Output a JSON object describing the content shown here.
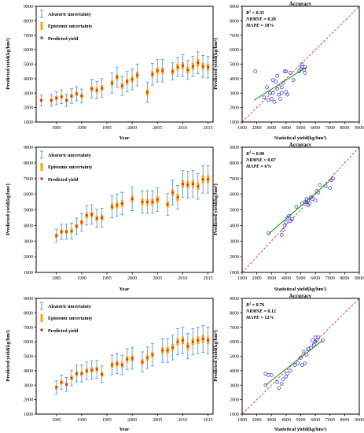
{
  "colors": {
    "aleatoric": "#5b9bd5",
    "epistemic": "#ffa500",
    "predicted": "#e8291c",
    "scatter": "#2a2ae0",
    "fit": "#1a9a1a",
    "one_to_one": "#e02020",
    "axis": "#000000"
  },
  "chart_data": [
    {
      "id": "ts1",
      "type": "line",
      "xlabel": "Year",
      "ylabel": "Predicted yield(kg/hm²)",
      "xlim": [
        1981,
        2016
      ],
      "ylim": [
        1000,
        9000
      ],
      "xticks": [
        1985,
        1990,
        1995,
        2000,
        2005,
        2010,
        2015
      ],
      "yticks": [
        1000,
        2000,
        3000,
        4000,
        5000,
        6000,
        7000,
        8000,
        9000
      ],
      "legend": [
        "Aleatoric uncertainty",
        "Epistemic uncertainty",
        "Predicted yield"
      ],
      "legend_position": "top-left",
      "x": [
        1982,
        1984,
        1985,
        1986,
        1987,
        1988,
        1989,
        1990,
        1992,
        1993,
        1994,
        1996,
        1997,
        1998,
        1999,
        2000,
        2001,
        2003,
        2004,
        2005,
        2006,
        2008,
        2009,
        2010,
        2011,
        2012,
        2013,
        2014,
        2015
      ],
      "predicted": [
        2500,
        2500,
        2650,
        2750,
        2500,
        2800,
        2950,
        2800,
        3300,
        3200,
        3350,
        3700,
        4100,
        3500,
        3800,
        3950,
        4250,
        3050,
        4300,
        4550,
        4550,
        4500,
        4800,
        4900,
        4600,
        4850,
        5100,
        4850,
        4800
      ],
      "aleatoric_halfwidth": [
        380,
        400,
        450,
        480,
        420,
        500,
        500,
        480,
        650,
        600,
        650,
        700,
        700,
        650,
        700,
        720,
        750,
        700,
        750,
        780,
        780,
        600,
        650,
        750,
        650,
        700,
        750,
        750,
        750
      ],
      "epistemic_halfwidth": [
        120,
        130,
        150,
        150,
        140,
        160,
        160,
        160,
        180,
        180,
        180,
        200,
        200,
        200,
        200,
        200,
        220,
        220,
        220,
        230,
        230,
        220,
        230,
        240,
        230,
        240,
        250,
        240,
        240
      ]
    },
    {
      "id": "sc1",
      "type": "scatter",
      "title": "Accuracy",
      "xlabel": "Statistical yield(kg/hm²)",
      "ylabel": "Predicted yield(kg/hm²)",
      "xlim": [
        1000,
        9000
      ],
      "ylim": [
        1000,
        9000
      ],
      "xticks": [
        1000,
        2000,
        3000,
        4000,
        5000,
        6000,
        7000,
        8000,
        9000
      ],
      "yticks": [
        1000,
        2000,
        3000,
        4000,
        5000,
        6000,
        7000,
        8000,
        9000
      ],
      "metrics": [
        {
          "label": "R",
          "sup": "2",
          "value": " = 0.35"
        },
        {
          "label": "NRMSE",
          "value": " = 0.20"
        },
        {
          "label": "MAPE",
          "value": " = 18%"
        }
      ],
      "points": [
        [
          1900,
          4500
        ],
        [
          2500,
          2700
        ],
        [
          2700,
          3400
        ],
        [
          2800,
          2500
        ],
        [
          2900,
          3000
        ],
        [
          3000,
          2600
        ],
        [
          3100,
          3000
        ],
        [
          3100,
          3900
        ],
        [
          3200,
          2400
        ],
        [
          3300,
          3800
        ],
        [
          3400,
          4200
        ],
        [
          3400,
          3300
        ],
        [
          3500,
          2900
        ],
        [
          3600,
          2600
        ],
        [
          3700,
          3000
        ],
        [
          3700,
          3400
        ],
        [
          3800,
          3700
        ],
        [
          3900,
          4500
        ],
        [
          4000,
          3100
        ],
        [
          4000,
          4500
        ],
        [
          4100,
          2900
        ],
        [
          4300,
          4400
        ],
        [
          4500,
          3900
        ],
        [
          5000,
          4700
        ],
        [
          5100,
          5000
        ],
        [
          5200,
          4600
        ],
        [
          5300,
          4800
        ],
        [
          5300,
          4400
        ],
        [
          5100,
          4800
        ],
        [
          4900,
          4500
        ]
      ],
      "fit_line": [
        [
          1800,
          2500
        ],
        [
          5400,
          4800
        ]
      ],
      "one_to_one": true
    },
    {
      "id": "ts2",
      "type": "line",
      "xlabel": "Year",
      "ylabel": "Predicted yield(kg/hm²)",
      "xlim": [
        1981,
        2016
      ],
      "ylim": [
        1000,
        9000
      ],
      "xticks": [
        1985,
        1990,
        1995,
        2000,
        2005,
        2010,
        2015
      ],
      "yticks": [
        1000,
        2000,
        3000,
        4000,
        5000,
        6000,
        7000,
        8000,
        9000
      ],
      "legend": [
        "Aleatoric uncertainty",
        "Epistemic uncertainty",
        "Predicted yield"
      ],
      "legend_position": "top-left",
      "x": [
        1985,
        1986,
        1987,
        1988,
        1989,
        1990,
        1991,
        1992,
        1993,
        1994,
        1996,
        1997,
        1998,
        2000,
        2002,
        2003,
        2004,
        2005,
        2007,
        2008,
        2009,
        2010,
        2011,
        2012,
        2013,
        2014,
        2015
      ],
      "predicted": [
        3350,
        3600,
        3600,
        3650,
        3950,
        4200,
        4650,
        4700,
        4450,
        4500,
        5200,
        5300,
        5400,
        5700,
        5500,
        5500,
        5500,
        5650,
        5350,
        6100,
        5800,
        6650,
        6600,
        6650,
        6500,
        6950,
        6950
      ],
      "aleatoric_halfwidth": [
        420,
        480,
        480,
        500,
        520,
        560,
        620,
        620,
        580,
        600,
        700,
        700,
        720,
        750,
        720,
        720,
        720,
        750,
        700,
        800,
        760,
        860,
        860,
        860,
        820,
        880,
        880
      ],
      "epistemic_halfwidth": [
        140,
        150,
        150,
        150,
        160,
        170,
        180,
        180,
        170,
        180,
        200,
        200,
        210,
        220,
        210,
        210,
        210,
        220,
        200,
        230,
        220,
        240,
        240,
        240,
        230,
        250,
        250
      ]
    },
    {
      "id": "sc2",
      "type": "scatter",
      "title": "Accuracy",
      "xlabel": "Statistical yield(kg/hm²)",
      "ylabel": "Predicted yield(kg/hm²)",
      "xlim": [
        1000,
        9000
      ],
      "ylim": [
        1000,
        9000
      ],
      "xticks": [
        1000,
        2000,
        3000,
        4000,
        5000,
        6000,
        7000,
        8000,
        9000
      ],
      "yticks": [
        1000,
        2000,
        3000,
        4000,
        5000,
        6000,
        7000,
        8000,
        9000
      ],
      "metrics": [
        {
          "label": "R",
          "sup": "2",
          "value": " = 0.90"
        },
        {
          "label": "NRMSE",
          "value": " = 0.07"
        },
        {
          "label": "MAPE",
          "value": " = 6%"
        }
      ],
      "points": [
        [
          2800,
          3500
        ],
        [
          3700,
          3400
        ],
        [
          3800,
          3700
        ],
        [
          3900,
          4000
        ],
        [
          4000,
          4200
        ],
        [
          4100,
          4500
        ],
        [
          4200,
          4600
        ],
        [
          4400,
          4400
        ],
        [
          4700,
          5200
        ],
        [
          5100,
          5400
        ],
        [
          5300,
          5500
        ],
        [
          5400,
          5700
        ],
        [
          5400,
          5500
        ],
        [
          5500,
          5600
        ],
        [
          5600,
          5400
        ],
        [
          5700,
          5800
        ],
        [
          5800,
          5700
        ],
        [
          6000,
          5600
        ],
        [
          6100,
          6200
        ],
        [
          6200,
          6100
        ],
        [
          6300,
          6600
        ],
        [
          6700,
          6500
        ],
        [
          7000,
          6400
        ],
        [
          7100,
          6900
        ],
        [
          7200,
          7000
        ],
        [
          5500,
          5300
        ],
        [
          4300,
          4300
        ]
      ],
      "fit_line": [
        [
          2800,
          3450
        ],
        [
          7100,
          6950
        ]
      ],
      "one_to_one": true
    },
    {
      "id": "ts3",
      "type": "line",
      "xlabel": "Year",
      "ylabel": "Predicted yield(kg/hm²)",
      "xlim": [
        1981,
        2016
      ],
      "ylim": [
        1000,
        9000
      ],
      "xticks": [
        1985,
        1990,
        1995,
        2000,
        2005,
        2010,
        2015
      ],
      "yticks": [
        1000,
        2000,
        3000,
        4000,
        5000,
        6000,
        7000,
        8000,
        9000
      ],
      "legend": [
        "Aleatoric uncertainty",
        "Epistemic uncertainty",
        "Predicted yield"
      ],
      "legend_position": "top-left",
      "x": [
        1985,
        1986,
        1987,
        1988,
        1989,
        1990,
        1991,
        1992,
        1993,
        1994,
        1996,
        1997,
        1998,
        1999,
        2000,
        2002,
        2003,
        2004,
        2006,
        2007,
        2008,
        2009,
        2010,
        2011,
        2012,
        2013,
        2014,
        2015
      ],
      "predicted": [
        2850,
        3200,
        3050,
        3500,
        3800,
        3800,
        4000,
        4050,
        4100,
        3750,
        4400,
        4500,
        4400,
        4800,
        4850,
        4600,
        4900,
        5100,
        5400,
        5400,
        5600,
        6000,
        6100,
        5700,
        6000,
        6100,
        6200,
        6100
      ],
      "aleatoric_halfwidth": [
        450,
        500,
        480,
        540,
        580,
        580,
        600,
        620,
        620,
        580,
        680,
        700,
        680,
        720,
        740,
        700,
        740,
        780,
        820,
        820,
        850,
        900,
        920,
        880,
        900,
        920,
        930,
        920
      ],
      "epistemic_halfwidth": [
        140,
        150,
        150,
        160,
        170,
        170,
        180,
        180,
        180,
        170,
        200,
        200,
        200,
        210,
        210,
        200,
        210,
        220,
        230,
        230,
        240,
        250,
        260,
        250,
        250,
        260,
        260,
        260
      ]
    },
    {
      "id": "sc3",
      "type": "scatter",
      "title": "Accuracy",
      "xlabel": "Statistical yield(kg/hm²)",
      "ylabel": "Predicted yield(kg/hm²)",
      "xlim": [
        1000,
        9000
      ],
      "ylim": [
        1000,
        9000
      ],
      "xticks": [
        1000,
        2000,
        3000,
        4000,
        5000,
        6000,
        7000,
        8000,
        9000
      ],
      "yticks": [
        1000,
        2000,
        3000,
        4000,
        5000,
        6000,
        7000,
        8000,
        9000
      ],
      "metrics": [
        {
          "label": "R",
          "sup": "2",
          "value": " = 0.76"
        },
        {
          "label": "NRMSE",
          "value": " = 0.12"
        },
        {
          "label": "MAPE",
          "value": " = 12%"
        }
      ],
      "points": [
        [
          2600,
          3800
        ],
        [
          2800,
          3700
        ],
        [
          3000,
          3700
        ],
        [
          3400,
          3200
        ],
        [
          3500,
          2800
        ],
        [
          3700,
          3100
        ],
        [
          3800,
          3400
        ],
        [
          4000,
          3600
        ],
        [
          4100,
          3800
        ],
        [
          4300,
          4000
        ],
        [
          4600,
          4400
        ],
        [
          4800,
          4500
        ],
        [
          5000,
          4900
        ],
        [
          5100,
          4400
        ],
        [
          5200,
          5300
        ],
        [
          5300,
          4500
        ],
        [
          5400,
          5100
        ],
        [
          5500,
          5500
        ],
        [
          5700,
          5600
        ],
        [
          5800,
          6100
        ],
        [
          5900,
          5800
        ],
        [
          6000,
          6000
        ],
        [
          6100,
          6100
        ],
        [
          6200,
          6300
        ],
        [
          6500,
          6100
        ],
        [
          6000,
          6300
        ],
        [
          2600,
          3000
        ]
      ],
      "fit_line": [
        [
          2600,
          3000
        ],
        [
          6500,
          6100
        ]
      ],
      "one_to_one": true
    }
  ]
}
